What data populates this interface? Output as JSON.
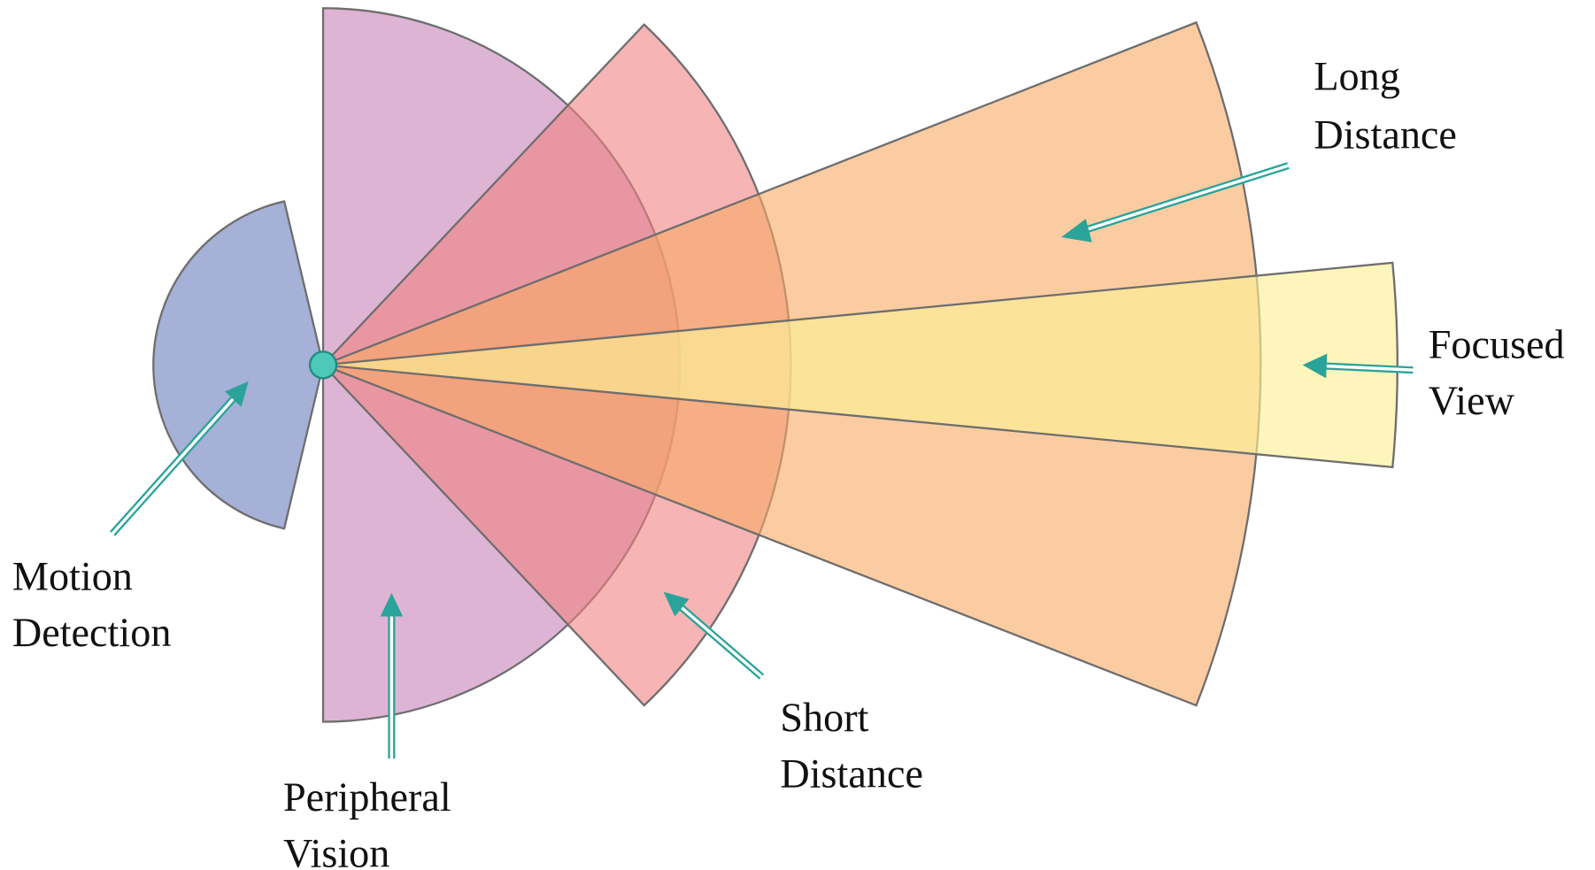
{
  "labels": {
    "long_distance": [
      "Long",
      "Distance"
    ],
    "focused_view": [
      "Focused",
      "View"
    ],
    "motion_detection": [
      "Motion",
      "Detection"
    ],
    "peripheral_vision": [
      "Peripheral",
      "Vision"
    ],
    "short_distance": [
      "Short",
      "Distance"
    ]
  }
}
